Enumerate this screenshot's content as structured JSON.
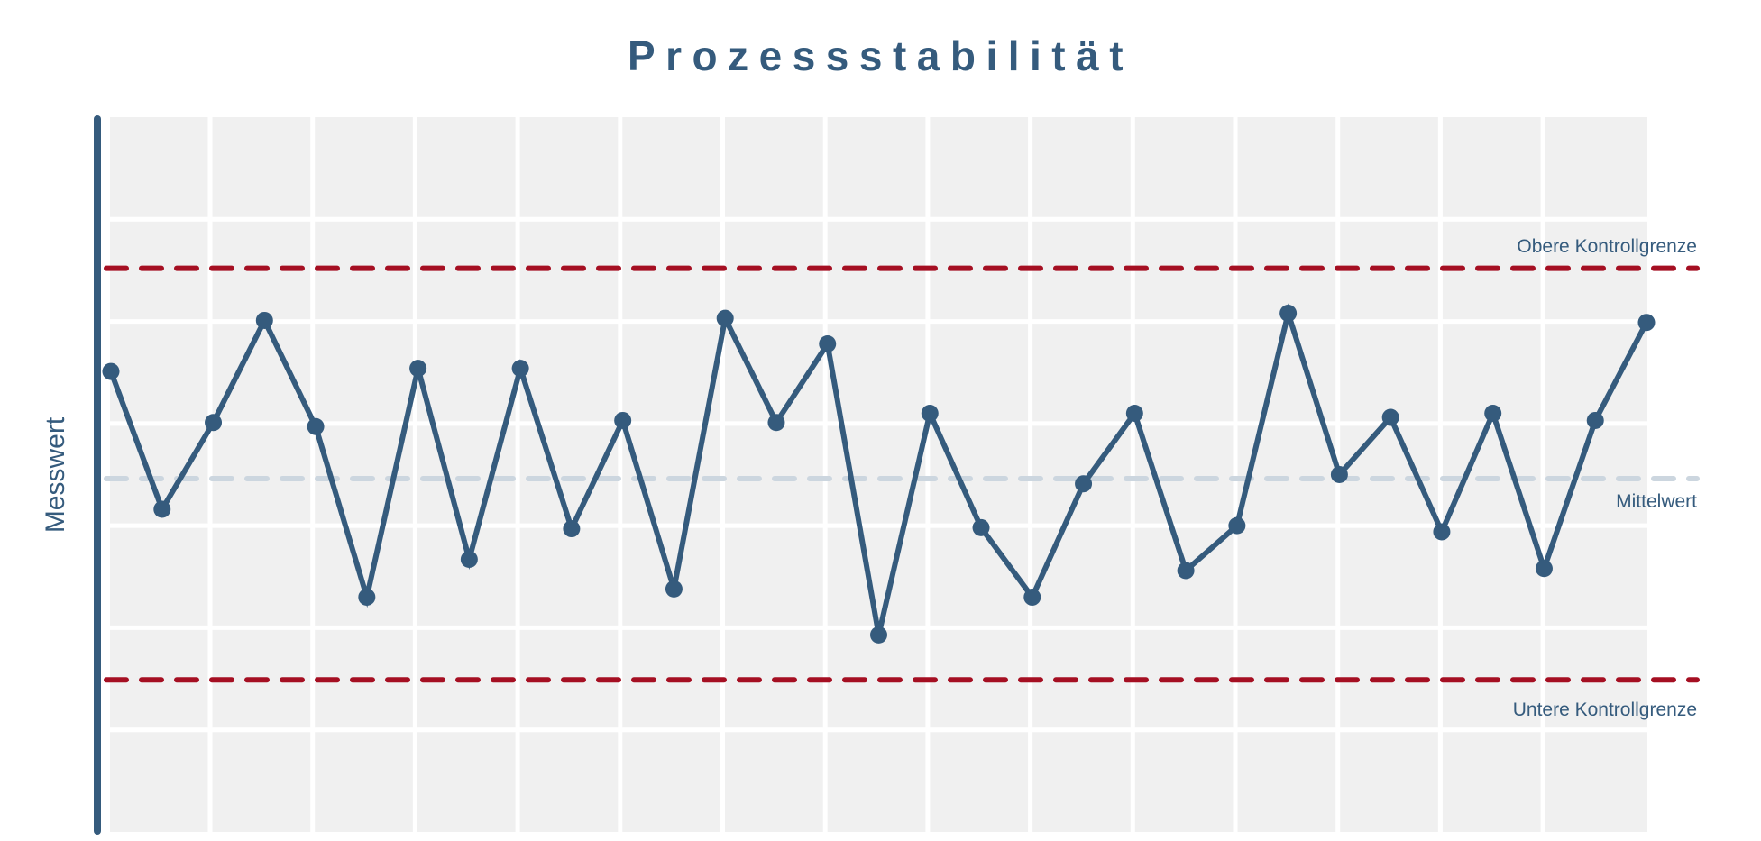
{
  "chart_data": {
    "type": "line",
    "title": "Prozessstabilität",
    "xlabel": "",
    "ylabel": "Messwert",
    "x": [
      1,
      2,
      3,
      4,
      5,
      6,
      7,
      8,
      9,
      10,
      11,
      12,
      13,
      14,
      15,
      16,
      17,
      18,
      19,
      20,
      21,
      22,
      23,
      24,
      25,
      26,
      27,
      28,
      29,
      30,
      31
    ],
    "series": [
      {
        "name": "Messwert",
        "color": "#355b7d",
        "values": [
          55.1,
          41.6,
          50.1,
          60.1,
          49.7,
          33.0,
          55.4,
          36.7,
          55.4,
          39.7,
          50.3,
          33.8,
          60.3,
          50.1,
          57.8,
          29.3,
          51.0,
          39.8,
          33.0,
          44.1,
          51.0,
          35.6,
          40.0,
          60.8,
          45.0,
          50.6,
          39.4,
          51.0,
          35.8,
          50.3,
          59.9
        ]
      }
    ],
    "reference_lines": [
      {
        "name": "Obere Kontrollgrenze",
        "value": 65.2,
        "color": "#a50f22",
        "style": "dashed"
      },
      {
        "name": "Mittelwert",
        "value": 44.6,
        "color": "#ccd6df",
        "style": "dashed"
      },
      {
        "name": "Untere Kontrollgrenze",
        "value": 24.9,
        "color": "#a50f22",
        "style": "dashed"
      }
    ],
    "ylim": [
      10,
      80
    ],
    "xlim": [
      0.97,
      31.02
    ],
    "grid": true,
    "grid_rows": 7,
    "grid_cols": 15,
    "tick_labels_visible": false,
    "legend": "none",
    "background": "#f0f0f0"
  },
  "labels": {
    "title": "Prozessstabilität",
    "ylabel": "Messwert",
    "ucl": "Obere Kontrollgrenze",
    "mean": "Mittelwert",
    "lcl": "Untere Kontrollgrenze"
  }
}
